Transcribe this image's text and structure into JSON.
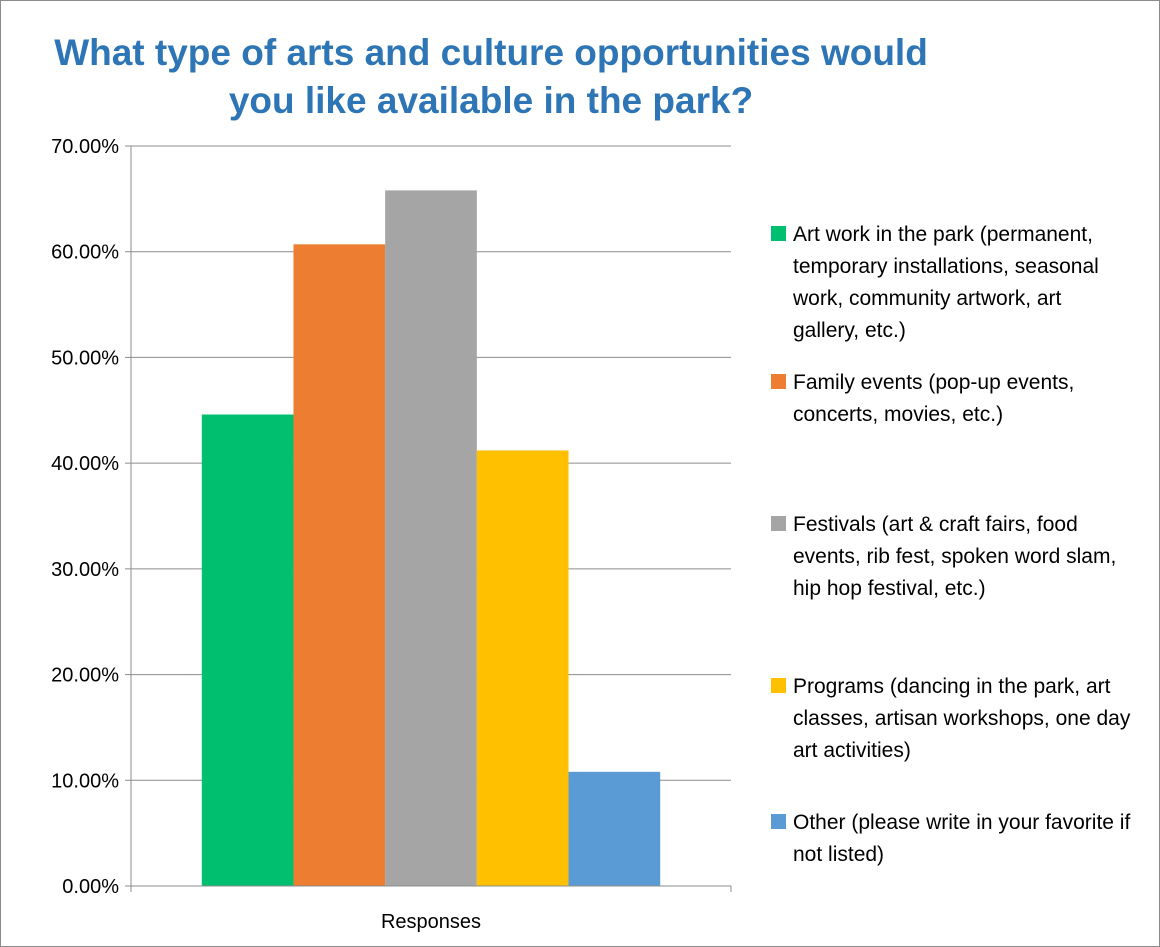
{
  "chart_data": {
    "type": "bar",
    "title": "What type of arts and culture opportunities would you like available in the park?",
    "categories": [
      "Responses"
    ],
    "xlabel": "",
    "ylabel": "",
    "ylim": [
      0,
      0.7
    ],
    "yticks": [
      "0.00%",
      "10.00%",
      "20.00%",
      "30.00%",
      "40.00%",
      "50.00%",
      "60.00%",
      "70.00%"
    ],
    "grid": true,
    "legend_position": "right",
    "series": [
      {
        "name": "Art work in the park (permanent, temporary installations, seasonal work, community artwork, art gallery, etc.)",
        "values": [
          0.446
        ],
        "color": "#00bf6f"
      },
      {
        "name": "Family events (pop-up events, concerts, movies, etc.)",
        "values": [
          0.607
        ],
        "color": "#ed7d31"
      },
      {
        "name": "Festivals (art & craft fairs, food events, rib fest, spoken word slam, hip hop festival, etc.)",
        "values": [
          0.658
        ],
        "color": "#a5a5a5"
      },
      {
        "name": "Programs (dancing in the park, art classes, artisan workshops, one day art activities)",
        "values": [
          0.412
        ],
        "color": "#ffc000"
      },
      {
        "name": "Other (please write in your favorite if not listed)",
        "values": [
          0.108
        ],
        "color": "#5b9bd5"
      }
    ]
  }
}
